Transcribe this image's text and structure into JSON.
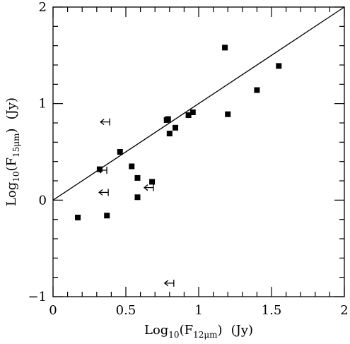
{
  "chart_data": {
    "type": "scatter",
    "title": "",
    "xlabel": {
      "prefix": "Log",
      "base": "10",
      "open": "(F",
      "sub": "12μm",
      "close": ")",
      "unit": "(Jy)"
    },
    "ylabel": {
      "prefix": "Log",
      "base": "10",
      "open": "(F",
      "sub": "15μm",
      "close": ")",
      "unit": "(Jy)"
    },
    "xlim": [
      0,
      2
    ],
    "ylim": [
      -1,
      2
    ],
    "xticks": [
      {
        "value": 0,
        "label": "0"
      },
      {
        "value": 0.5,
        "label": "0.5"
      },
      {
        "value": 1,
        "label": "1"
      },
      {
        "value": 1.5,
        "label": "1.5"
      },
      {
        "value": 2,
        "label": "2"
      }
    ],
    "yticks": [
      {
        "value": -1,
        "label": "−1"
      },
      {
        "value": 0,
        "label": "0"
      },
      {
        "value": 1,
        "label": "1"
      },
      {
        "value": 2,
        "label": "2"
      }
    ],
    "x_minor_step": 0.1,
    "y_minor_step": 0.2,
    "grid": false,
    "detections": [
      {
        "x": 0.17,
        "y": -0.18
      },
      {
        "x": 0.32,
        "y": 0.32
      },
      {
        "x": 0.37,
        "y": -0.16
      },
      {
        "x": 0.46,
        "y": 0.5
      },
      {
        "x": 0.54,
        "y": 0.35
      },
      {
        "x": 0.58,
        "y": 0.23
      },
      {
        "x": 0.58,
        "y": 0.03
      },
      {
        "x": 0.68,
        "y": 0.19
      },
      {
        "x": 0.78,
        "y": 0.83
      },
      {
        "x": 0.79,
        "y": 0.84
      },
      {
        "x": 0.8,
        "y": 0.69
      },
      {
        "x": 0.84,
        "y": 0.75
      },
      {
        "x": 0.93,
        "y": 0.88
      },
      {
        "x": 0.96,
        "y": 0.91
      },
      {
        "x": 1.18,
        "y": 1.58
      },
      {
        "x": 1.2,
        "y": 0.89
      },
      {
        "x": 1.4,
        "y": 1.14
      },
      {
        "x": 1.55,
        "y": 1.39
      }
    ],
    "upper_limits": [
      {
        "x": 0.36,
        "y": 0.81
      },
      {
        "x": 0.34,
        "y": 0.31
      },
      {
        "x": 0.35,
        "y": 0.08
      },
      {
        "x": 0.66,
        "y": 0.13
      },
      {
        "x": 0.8,
        "y": -0.86
      }
    ],
    "reference_line": {
      "x": [
        0,
        2
      ],
      "y": [
        0,
        2
      ]
    },
    "colors": {
      "marker": "#000000",
      "line": "#000000",
      "axis": "#000000"
    }
  }
}
